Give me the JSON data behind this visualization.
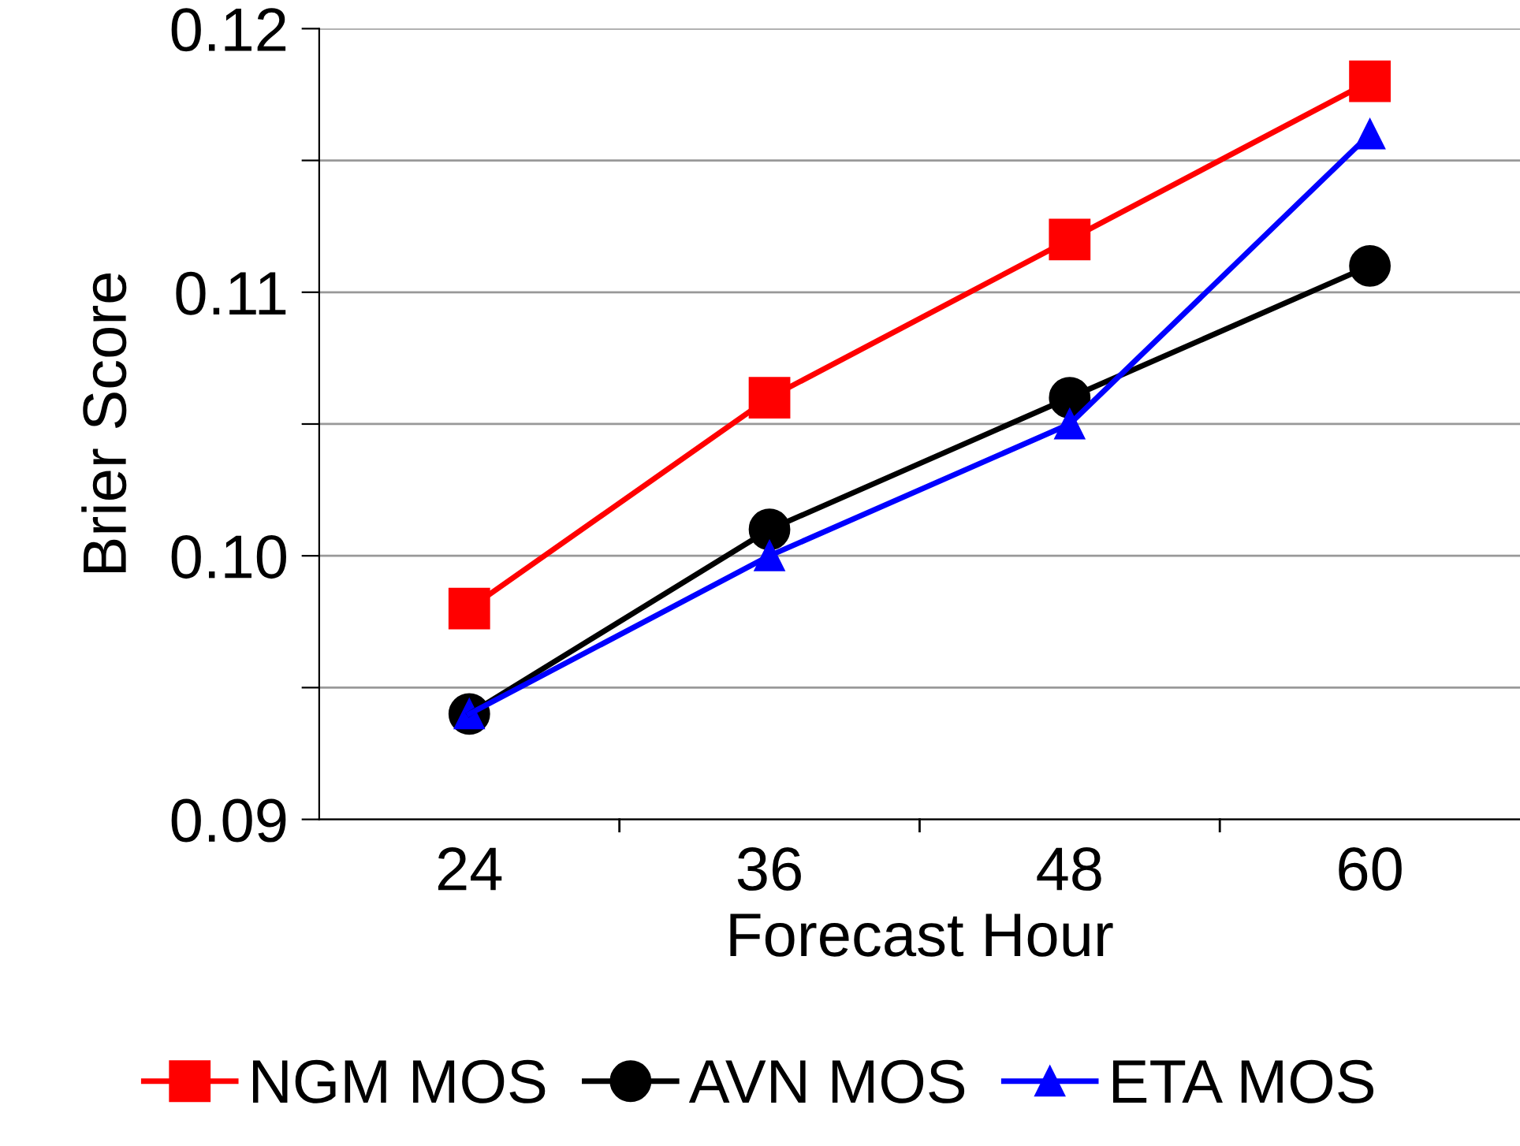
{
  "chart_data": {
    "type": "line",
    "xlabel": "Forecast Hour",
    "ylabel": "Brier Score",
    "categories": [
      "24",
      "36",
      "48",
      "60"
    ],
    "series": [
      {
        "name": "NGM MOS",
        "color": "#ff0000",
        "marker": "square",
        "values": [
          0.098,
          0.106,
          0.112,
          0.118
        ]
      },
      {
        "name": "AVN MOS",
        "color": "#000000",
        "marker": "circle",
        "values": [
          0.094,
          0.101,
          0.106,
          0.111
        ]
      },
      {
        "name": "ETA MOS",
        "color": "#0000ff",
        "marker": "triangle",
        "values": [
          0.094,
          0.1,
          0.105,
          0.116
        ]
      }
    ],
    "ylim": [
      0.09,
      0.12
    ],
    "yticks": [
      {
        "value": 0.09,
        "label": "0.09"
      },
      {
        "value": 0.095,
        "label": null
      },
      {
        "value": 0.1,
        "label": "0.10"
      },
      {
        "value": 0.105,
        "label": null
      },
      {
        "value": 0.11,
        "label": "0.11"
      },
      {
        "value": 0.115,
        "label": null
      },
      {
        "value": 0.12,
        "label": "0.12"
      }
    ],
    "grid": "y",
    "legend": "bottom",
    "line_style": "solid"
  }
}
